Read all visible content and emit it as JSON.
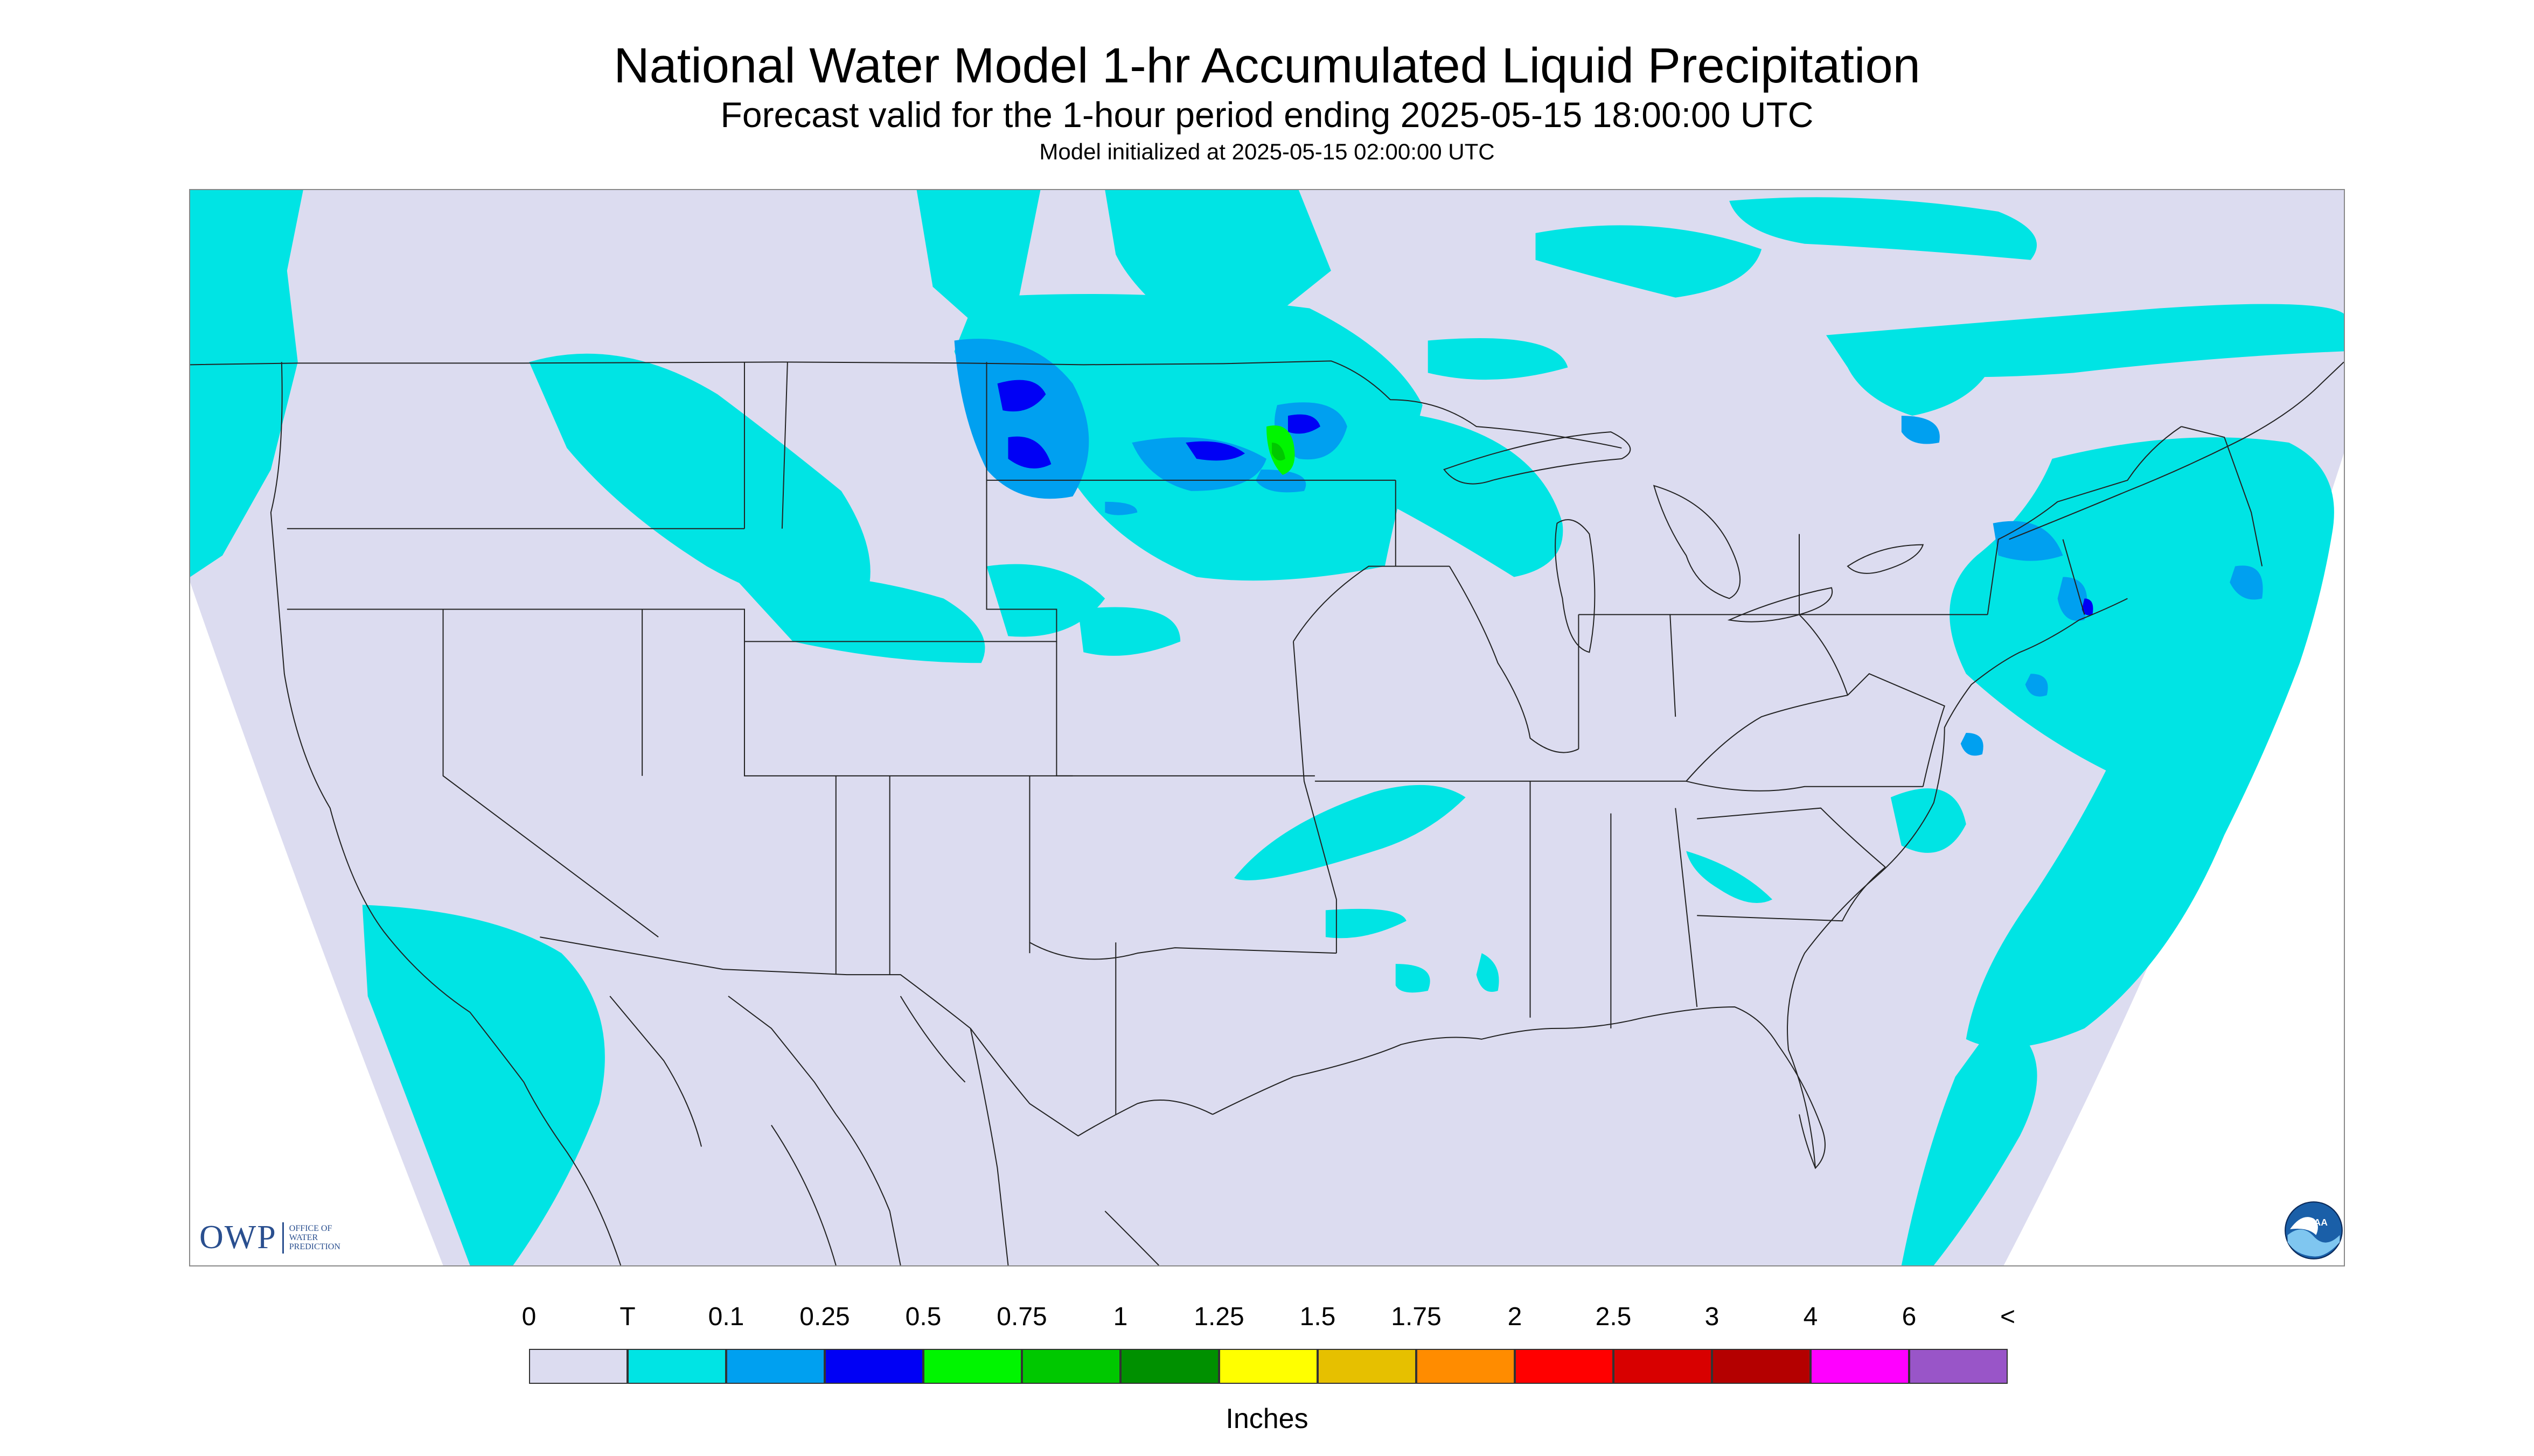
{
  "title": "National Water Model 1-hr Accumulated Liquid Precipitation",
  "subtitle": "Forecast valid for the 1-hour period ending 2025-05-15 18:00:00 UTC",
  "init_line": "Model initialized at 2025-05-15 02:00:00 UTC",
  "logos": {
    "owp": {
      "abbr": "OWP",
      "lines": [
        "OFFICE OF",
        "WATER",
        "PREDICTION"
      ]
    },
    "noaa": {
      "text": "NOAA"
    }
  },
  "map": {
    "projection": "Lambert conformal (CONUS)",
    "background_color": "#dcdcf0",
    "boundary_color": "#222222"
  },
  "legend": {
    "units": "Inches",
    "labels": [
      "0",
      "T",
      "0.1",
      "0.25",
      "0.5",
      "0.75",
      "1",
      "1.25",
      "1.5",
      "1.75",
      "2",
      "2.5",
      "3",
      "4",
      "6",
      "<"
    ],
    "colors": [
      "#dcdcf0",
      "#00e4e4",
      "#00a0f0",
      "#0000f5",
      "#00f500",
      "#00c800",
      "#009000",
      "#ffff00",
      "#e6c000",
      "#ff8c00",
      "#ff0000",
      "#d80000",
      "#b40000",
      "#ff00ff",
      "#9955c8"
    ]
  }
}
